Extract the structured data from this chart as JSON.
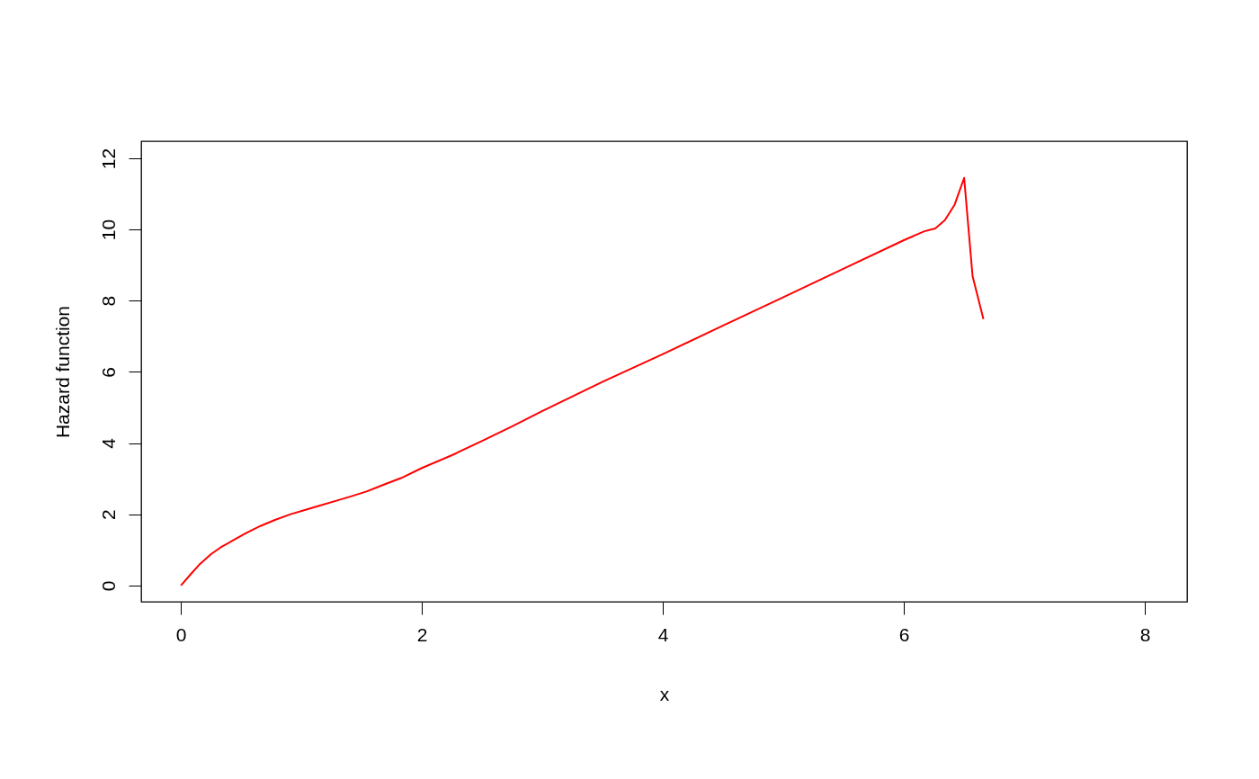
{
  "chart_data": {
    "type": "line",
    "xlabel": "x",
    "ylabel": "Hazard function",
    "x": [
      0,
      0.08,
      0.16,
      0.25,
      0.33,
      0.42,
      0.54,
      0.66,
      0.78,
      0.91,
      1.04,
      1.16,
      1.29,
      1.41,
      1.54,
      1.66,
      1.83,
      2.0,
      2.25,
      2.5,
      2.75,
      3.0,
      3.5,
      4.0,
      4.5,
      5.0,
      5.5,
      6.0,
      6.1,
      6.17,
      6.26,
      6.34,
      6.42,
      6.5,
      6.57,
      6.66
    ],
    "series": [
      {
        "color": "#ff0000",
        "values": [
          0,
          0.31,
          0.61,
          0.88,
          1.07,
          1.24,
          1.47,
          1.67,
          1.84,
          2.0,
          2.13,
          2.25,
          2.38,
          2.5,
          2.64,
          2.8,
          3.02,
          3.3,
          3.66,
          4.06,
          4.47,
          4.9,
          5.72,
          6.5,
          7.3,
          8.1,
          8.9,
          9.7,
          9.85,
          9.95,
          10.03,
          10.26,
          10.69,
          11.45,
          8.69,
          7.48
        ]
      }
    ],
    "xlim": [
      -0.33,
      8.35
    ],
    "ylim": [
      -0.46,
      12.48
    ],
    "xticks": [
      0,
      2,
      4,
      6,
      8
    ],
    "yticks": [
      0,
      2,
      4,
      6,
      8,
      10,
      12
    ],
    "grid": false,
    "legend": false
  }
}
